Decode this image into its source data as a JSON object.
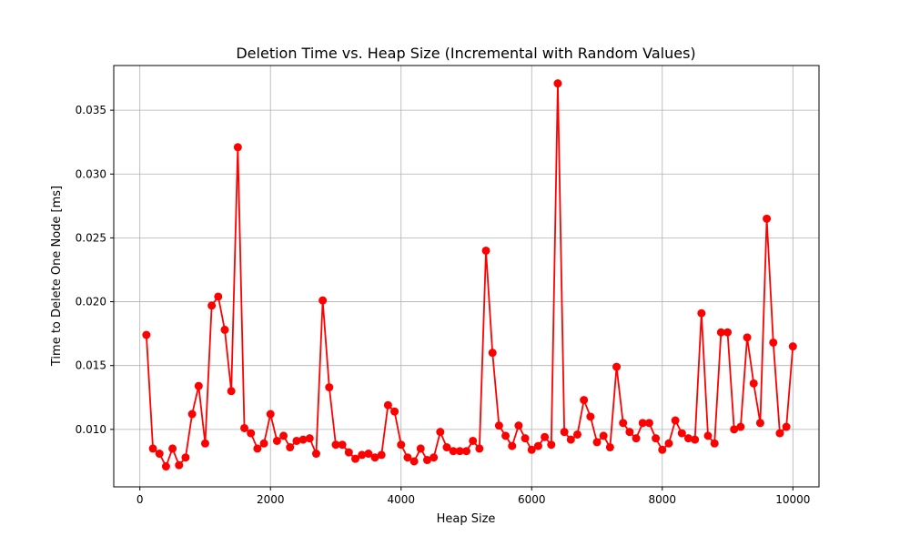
{
  "chart_data": {
    "type": "line",
    "title": "Deletion Time vs. Heap Size (Incremental with Random Values)",
    "xlabel": "Heap Size",
    "ylabel": "Time to Delete One Node [ms]",
    "xlim": [
      -400,
      10400
    ],
    "ylim": [
      0.0055,
      0.0385
    ],
    "xticks": [
      0,
      2000,
      4000,
      6000,
      8000,
      10000
    ],
    "xtick_labels": [
      "0",
      "2000",
      "4000",
      "6000",
      "8000",
      "10000"
    ],
    "yticks": [
      0.01,
      0.015,
      0.02,
      0.025,
      0.03,
      0.035
    ],
    "ytick_labels": [
      "0.010",
      "0.015",
      "0.020",
      "0.025",
      "0.030",
      "0.035"
    ],
    "grid": true,
    "color": "#ff0000",
    "marker": "circle",
    "x": [
      100,
      200,
      300,
      400,
      500,
      600,
      700,
      800,
      900,
      1000,
      1100,
      1200,
      1300,
      1400,
      1500,
      1600,
      1700,
      1800,
      1900,
      2000,
      2100,
      2200,
      2300,
      2400,
      2500,
      2600,
      2700,
      2800,
      2900,
      3000,
      3100,
      3200,
      3300,
      3400,
      3500,
      3600,
      3700,
      3800,
      3900,
      4000,
      4100,
      4200,
      4300,
      4400,
      4500,
      4600,
      4700,
      4800,
      4900,
      5000,
      5100,
      5200,
      5300,
      5400,
      5500,
      5600,
      5700,
      5800,
      5900,
      6000,
      6100,
      6200,
      6300,
      6400,
      6500,
      6600,
      6700,
      6800,
      6900,
      7000,
      7100,
      7200,
      7300,
      7400,
      7500,
      7600,
      7700,
      7800,
      7900,
      8000,
      8100,
      8200,
      8300,
      8400,
      8500,
      8600,
      8700,
      8800,
      8900,
      9000,
      9100,
      9200,
      9300,
      9400,
      9500,
      9600,
      9700,
      9800,
      9900,
      10000
    ],
    "y": [
      0.0174,
      0.0085,
      0.0081,
      0.0071,
      0.0085,
      0.0072,
      0.0078,
      0.0112,
      0.0134,
      0.0089,
      0.0197,
      0.0204,
      0.0178,
      0.013,
      0.0321,
      0.0101,
      0.0097,
      0.0085,
      0.0089,
      0.0112,
      0.0091,
      0.0095,
      0.0086,
      0.0091,
      0.0092,
      0.0093,
      0.0081,
      0.0201,
      0.0133,
      0.0088,
      0.0088,
      0.0082,
      0.0077,
      0.008,
      0.0081,
      0.0078,
      0.008,
      0.0119,
      0.0114,
      0.0088,
      0.0078,
      0.0075,
      0.0085,
      0.0076,
      0.0078,
      0.0098,
      0.0086,
      0.0083,
      0.0083,
      0.0083,
      0.0091,
      0.0085,
      0.024,
      0.016,
      0.0103,
      0.0095,
      0.0087,
      0.0103,
      0.0093,
      0.0084,
      0.0087,
      0.0094,
      0.0088,
      0.0371,
      0.0098,
      0.0092,
      0.0096,
      0.0123,
      0.011,
      0.009,
      0.0095,
      0.0086,
      0.0149,
      0.0105,
      0.0098,
      0.0093,
      0.0105,
      0.0105,
      0.0093,
      0.0084,
      0.0089,
      0.0107,
      0.0097,
      0.0093,
      0.0092,
      0.0191,
      0.0095,
      0.0089,
      0.0176,
      0.0176,
      0.01,
      0.0102,
      0.0172,
      0.0136,
      0.0105,
      0.0265,
      0.0168,
      0.0097,
      0.0102,
      0.0165
    ]
  }
}
